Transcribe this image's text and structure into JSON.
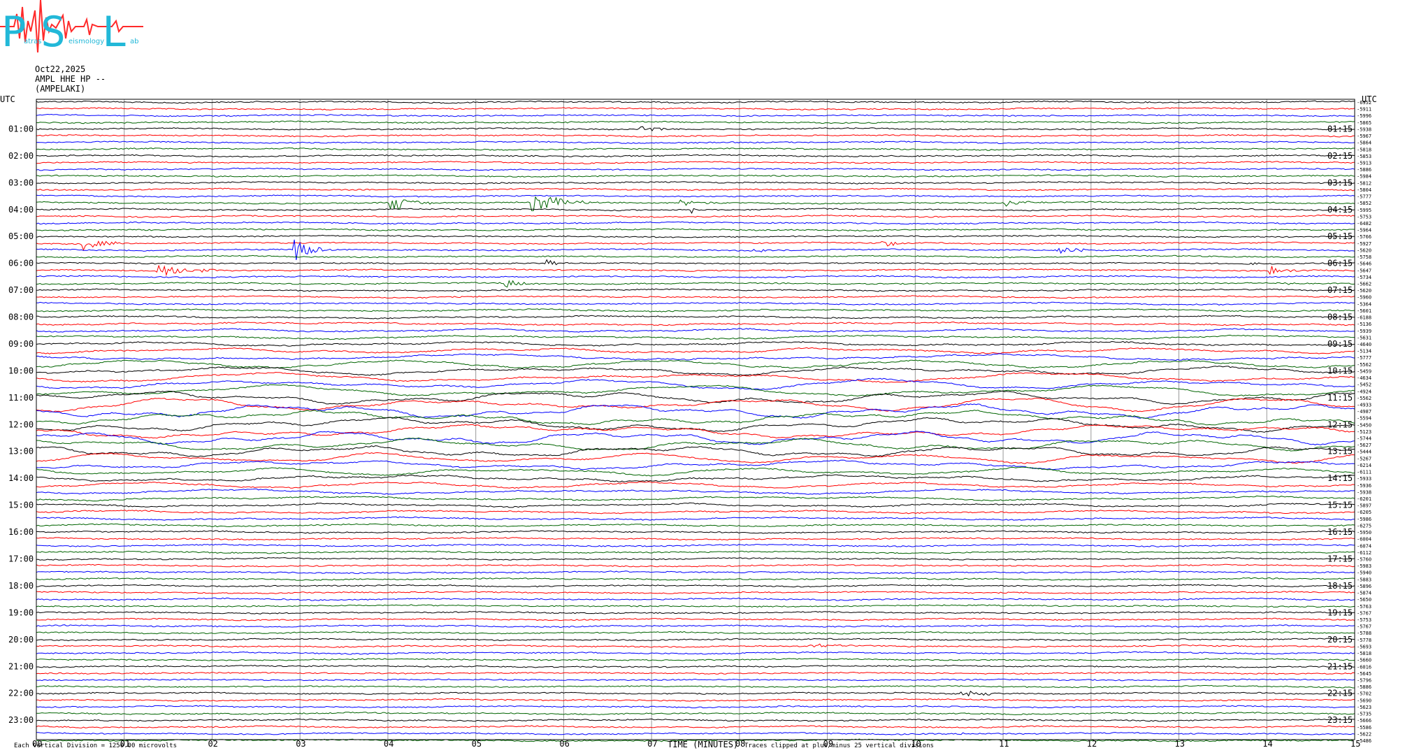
{
  "logo": {
    "letters": [
      "P",
      "S",
      "L"
    ],
    "subtitle_left": "atras",
    "subtitle_mid": "eismology",
    "subtitle_right": "ab",
    "colors": {
      "letters": "#22b8d8",
      "trace": "#ff2a2a"
    }
  },
  "header": {
    "date": "Oct22,2025",
    "station": "AMPL HHE HP --",
    "location": "(AMPELAKI)"
  },
  "chart_data": {
    "type": "line",
    "title": "",
    "xlabel": "TIME (MINUTES)",
    "xlim": [
      0,
      15
    ],
    "x_ticks": [
      "00",
      "01",
      "02",
      "03",
      "04",
      "05",
      "06",
      "07",
      "08",
      "09",
      "10",
      "11",
      "12",
      "13",
      "14",
      "15"
    ],
    "left_axis_label": "UTC",
    "right_axis_label": "UTC",
    "left_hour_labels": [
      "01:00",
      "02:00",
      "03:00",
      "04:00",
      "05:00",
      "06:00",
      "07:00",
      "08:00",
      "09:00",
      "10:00",
      "11:00",
      "12:00",
      "13:00",
      "14:00",
      "15:00",
      "16:00",
      "17:00",
      "18:00",
      "19:00",
      "20:00",
      "21:00",
      "22:00",
      "23:00"
    ],
    "right_hour_labels": [
      "01:15",
      "02:15",
      "03:15",
      "04:15",
      "05:15",
      "06:15",
      "07:15",
      "08:15",
      "09:15",
      "10:15",
      "11:15",
      "12:15",
      "13:15",
      "14:15",
      "15:15",
      "16:15",
      "17:15",
      "18:15",
      "19:15",
      "20:15",
      "21:15",
      "22:15",
      "23:15"
    ],
    "trace_count": 96,
    "trace_colors": [
      "#000000",
      "#ff0000",
      "#0000ff",
      "#006400"
    ],
    "trace_offsets": [
      "-6952",
      "-5911",
      "-5996",
      "-5865",
      "-5938",
      "-5967",
      "-5864",
      "-5818",
      "-5853",
      "-5913",
      "-5886",
      "-5984",
      "-5812",
      "-5804",
      "-5777",
      "-5852",
      "-5995",
      "-5753",
      "-6482",
      "-5964",
      "-5766",
      "-5927",
      "-5620",
      "-5758",
      "-5646",
      "-5647",
      "-5734",
      "-5662",
      "-5620",
      "-5960",
      "-5364",
      "-5601",
      "-6188",
      "-5136",
      "-5939",
      "-5631",
      "-4640",
      "-5134",
      "-5777",
      "-5562",
      "-5459",
      "-4634",
      "-5452",
      "-4924",
      "-5562",
      "-4933",
      "-4987",
      "-5594",
      "-5450",
      "-5123",
      "-5744",
      "-5627",
      "-5444",
      "-5267",
      "-6214",
      "-6111",
      "-5933",
      "-5936",
      "-5938",
      "-6201",
      "-5897",
      "-6205",
      "-5986",
      "-6275",
      "-5950",
      "-6004",
      "-6074",
      "-6112",
      "-5760",
      "-5983",
      "-5940",
      "-5883",
      "-5896",
      "-5874",
      "-5650",
      "-5763",
      "-5767",
      "-5753",
      "-5767",
      "-5788",
      "-5778",
      "-5693",
      "-5818",
      "-5660",
      "-6016",
      "-5645",
      "-5796",
      "-5886",
      "-5702",
      "-5690",
      "-5623",
      "-5735",
      "-5666",
      "-5586",
      "-5622",
      "-5486"
    ],
    "footer_left": "Each Vertical Division = 1250.00 microvolts",
    "footer_right": "Traces clipped at plus/minus 25 vertical divisions",
    "events": [
      {
        "trace": 2,
        "minute": 1.75,
        "duration": 0.05,
        "amp": 5
      },
      {
        "trace": 4,
        "minute": 6.85,
        "duration": 0.6,
        "amp": 4
      },
      {
        "trace": 3,
        "minute": 6.0,
        "duration": 0.08,
        "amp": 4
      },
      {
        "trace": 15,
        "minute": 4.0,
        "duration": 0.6,
        "amp": 10
      },
      {
        "trace": 15,
        "minute": 5.6,
        "duration": 0.8,
        "amp": 12
      },
      {
        "trace": 15,
        "minute": 7.3,
        "duration": 0.6,
        "amp": 4
      },
      {
        "trace": 15,
        "minute": 11.0,
        "duration": 0.5,
        "amp": 4
      },
      {
        "trace": 16,
        "minute": 7.45,
        "duration": 0.08,
        "amp": 5
      },
      {
        "trace": 21,
        "minute": 0.5,
        "duration": 0.6,
        "amp": 7
      },
      {
        "trace": 21,
        "minute": 9.6,
        "duration": 0.35,
        "amp": 10
      },
      {
        "trace": 22,
        "minute": 2.9,
        "duration": 0.5,
        "amp": 14
      },
      {
        "trace": 22,
        "minute": 8.1,
        "duration": 0.5,
        "amp": 3
      },
      {
        "trace": 22,
        "minute": 11.6,
        "duration": 0.6,
        "amp": 4
      },
      {
        "trace": 24,
        "minute": 5.8,
        "duration": 0.2,
        "amp": 6
      },
      {
        "trace": 24,
        "minute": 13.8,
        "duration": 0.15,
        "amp": 4
      },
      {
        "trace": 25,
        "minute": 1.35,
        "duration": 0.9,
        "amp": 8
      },
      {
        "trace": 25,
        "minute": 14.0,
        "duration": 0.5,
        "amp": 5
      },
      {
        "trace": 27,
        "minute": 5.3,
        "duration": 0.5,
        "amp": 5
      },
      {
        "trace": 27,
        "minute": 14.2,
        "duration": 0.6,
        "amp": 3
      },
      {
        "trace": 81,
        "minute": 8.8,
        "duration": 0.45,
        "amp": 4
      },
      {
        "trace": 88,
        "minute": 10.5,
        "duration": 0.6,
        "amp": 5
      },
      {
        "trace": 94,
        "minute": 10.5,
        "duration": 0.3,
        "amp": 3
      }
    ]
  }
}
